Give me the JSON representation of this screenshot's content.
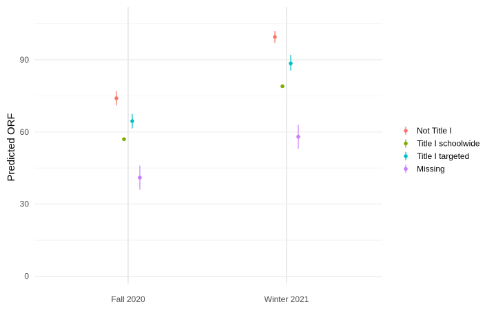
{
  "chart_data": {
    "type": "scatter",
    "subtype": "point-range",
    "title": "",
    "xlabel": "",
    "ylabel": "Predicted ORF",
    "categories": [
      "Fall 2020",
      "Winter 2021"
    ],
    "ylim": [
      -3,
      112
    ],
    "yticks": [
      0,
      30,
      60,
      90
    ],
    "grid": true,
    "legend_position": "right",
    "series": [
      {
        "name": "Not Title I",
        "color": "#F8766D",
        "values": [
          74,
          99.5
        ],
        "lower": [
          71,
          97
        ],
        "upper": [
          77,
          102
        ]
      },
      {
        "name": "Title I schoolwide",
        "color": "#7CAE00",
        "values": [
          57,
          79
        ],
        "lower": [
          56.5,
          78.5
        ],
        "upper": [
          57.5,
          79.5
        ]
      },
      {
        "name": "Title I targeted",
        "color": "#00BFC4",
        "values": [
          64.5,
          88.5
        ],
        "lower": [
          61.5,
          85.5
        ],
        "upper": [
          67.5,
          92
        ]
      },
      {
        "name": "Missing",
        "color": "#C77CFF",
        "values": [
          41,
          58
        ],
        "lower": [
          36,
          53
        ],
        "upper": [
          46,
          63
        ]
      }
    ]
  }
}
